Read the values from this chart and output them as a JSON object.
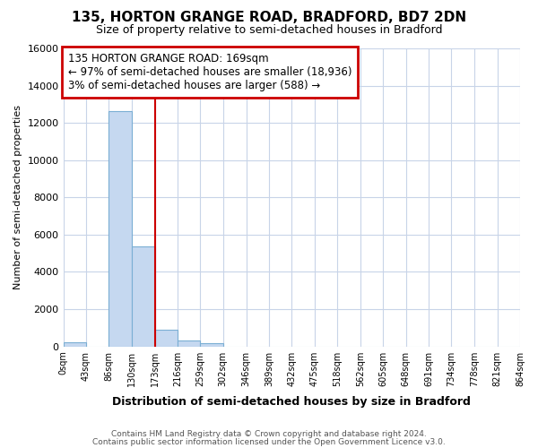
{
  "title": "135, HORTON GRANGE ROAD, BRADFORD, BD7 2DN",
  "subtitle": "Size of property relative to semi-detached houses in Bradford",
  "xlabel": "Distribution of semi-detached houses by size in Bradford",
  "ylabel": "Number of semi-detached properties",
  "footnote1": "Contains HM Land Registry data © Crown copyright and database right 2024.",
  "footnote2": "Contains public sector information licensed under the Open Government Licence v3.0.",
  "annotation_line1": "135 HORTON GRANGE ROAD: 169sqm",
  "annotation_line2": "← 97% of semi-detached houses are smaller (18,936)",
  "annotation_line3": "3% of semi-detached houses are larger (588) →",
  "bin_edges": [
    0,
    43,
    86,
    130,
    173,
    216,
    259,
    302,
    346,
    389,
    432,
    475,
    518,
    562,
    605,
    648,
    691,
    734,
    778,
    821,
    864
  ],
  "bar_heights": [
    200,
    0,
    12650,
    5380,
    900,
    300,
    190,
    0,
    0,
    0,
    0,
    0,
    0,
    0,
    0,
    0,
    0,
    0,
    0,
    0
  ],
  "bar_color": "#c5d8f0",
  "bar_edge_color": "#7bafd4",
  "grid_color": "#c8d4e8",
  "red_line_color": "#cc0000",
  "annotation_box_edge_color": "#cc0000",
  "background_color": "#ffffff",
  "plot_bg_color": "#ffffff",
  "ylim": [
    0,
    16000
  ],
  "yticks": [
    0,
    2000,
    4000,
    6000,
    8000,
    10000,
    12000,
    14000,
    16000
  ]
}
